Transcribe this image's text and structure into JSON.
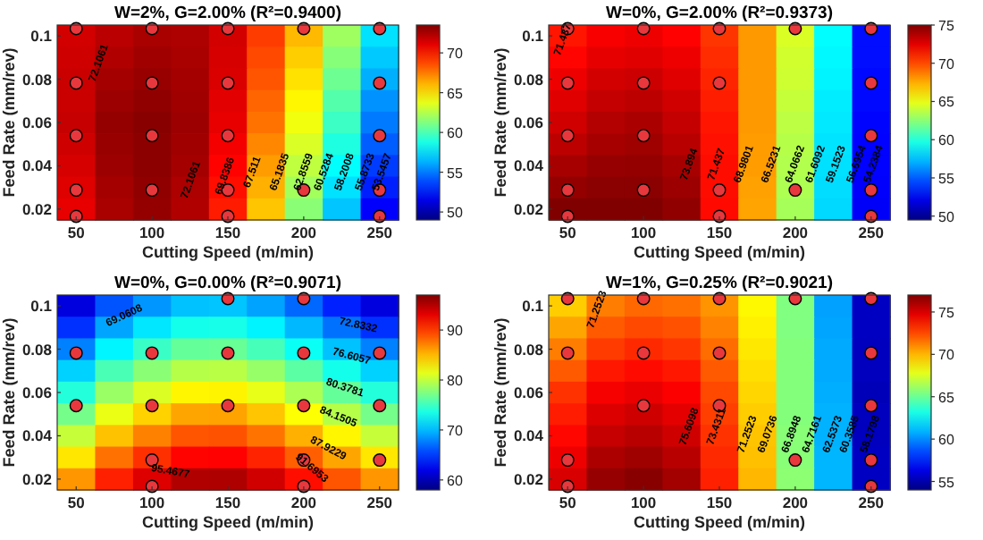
{
  "chart_data": [
    {
      "type": "heatmap",
      "title": "W=2%, G=2.00% (R²=0.9400)",
      "xlabel": "Cutting Speed (m/min)",
      "ylabel": "Feed Rate (mm/rev)",
      "categories": [
        "50",
        null,
        "100",
        null,
        "150",
        null,
        "200",
        null,
        "250"
      ],
      "y_categories": [
        "0.1",
        null,
        "0.08",
        null,
        "0.06",
        null,
        "0.04",
        null,
        "0.02"
      ],
      "clim": [
        49,
        73.5
      ],
      "cticks": [
        50,
        55,
        60,
        65,
        70
      ],
      "cells": [
        [
          71.5,
          72.1,
          72.5,
          72.4,
          71.5,
          69,
          66,
          62,
          57.5
        ],
        [
          71.6,
          72.3,
          72.7,
          72.5,
          71.4,
          68.7,
          65.5,
          61.4,
          56.9
        ],
        [
          71.7,
          72.6,
          72.9,
          72.6,
          71.3,
          68.4,
          65,
          60.8,
          56.3
        ],
        [
          71.7,
          72.8,
          73.1,
          72.7,
          71.1,
          68,
          64.5,
          60.2,
          55.6
        ],
        [
          71.8,
          73,
          73.3,
          72.8,
          71,
          67.7,
          64,
          59.6,
          55
        ],
        [
          71.6,
          72.9,
          73.2,
          72.7,
          70.7,
          67.2,
          63.4,
          58.9,
          54.3
        ],
        [
          71.4,
          72.8,
          73.2,
          72.6,
          70.4,
          66.7,
          62.8,
          58.2,
          53.5
        ],
        [
          71.2,
          72.6,
          73.1,
          72.4,
          70.1,
          66.2,
          62.1,
          57.5,
          52.8
        ],
        [
          71,
          72.5,
          73,
          72.3,
          69.8,
          65.7,
          61.5,
          56.8,
          52
        ]
      ],
      "annotations": [
        "72.1061",
        "72.1061",
        "69.8386",
        "67.511",
        "65.1835",
        "62.8559",
        "60.5284",
        "58.2008",
        "55.8733",
        "53.5457"
      ]
    },
    {
      "type": "heatmap",
      "title": "W=0%, G=2.00% (R²=0.9373)",
      "xlabel": "Cutting Speed (m/min)",
      "ylabel": "Feed Rate (mm/rev)",
      "categories": [
        "50",
        null,
        "100",
        null,
        "150",
        null,
        "200",
        null,
        "250"
      ],
      "y_categories": [
        "0.1",
        null,
        "0.08",
        null,
        "0.06",
        null,
        "0.04",
        null,
        "0.02"
      ],
      "clim": [
        49.5,
        75
      ],
      "cticks": [
        50,
        55,
        60,
        65,
        70,
        75
      ],
      "cells": [
        [
          71.3,
          72,
          72.2,
          71.8,
          70.5,
          68,
          64.5,
          59,
          53
        ],
        [
          71.7,
          72.4,
          72.6,
          72.2,
          70.7,
          68,
          64.3,
          58.9,
          53
        ],
        [
          72.2,
          72.9,
          73.1,
          72.6,
          70.9,
          68,
          64.2,
          58.8,
          52.9
        ],
        [
          72.6,
          73.3,
          73.5,
          73,
          71.1,
          68,
          64,
          58.6,
          52.9
        ],
        [
          73,
          73.7,
          73.9,
          73.3,
          71.3,
          68,
          63.8,
          58.5,
          52.8
        ],
        [
          73.5,
          74,
          74.2,
          73.6,
          71.4,
          67.9,
          63.6,
          58.4,
          52.7
        ],
        [
          74,
          74.4,
          74.5,
          74,
          71.5,
          67.9,
          63.5,
          58.3,
          52.7
        ],
        [
          74.5,
          74.7,
          74.7,
          74.3,
          71.5,
          67.8,
          63.4,
          58.2,
          52.6
        ],
        [
          75,
          75,
          75,
          74.6,
          71.6,
          67.7,
          63.2,
          58.1,
          52.5
        ]
      ],
      "annotations": [
        "71.437",
        "73.894",
        "71.437",
        "68.9801",
        "66.5231",
        "64.0662",
        "61.6092",
        "59.1523",
        "56.6954",
        "54.2384"
      ]
    },
    {
      "type": "heatmap",
      "title": "W=0%, G=0.00% (R²=0.9071)",
      "xlabel": "Cutting Speed (m/min)",
      "ylabel": "Feed Rate (mm/rev)",
      "categories": [
        "50",
        null,
        "100",
        null,
        "150",
        null,
        "200",
        null,
        "250"
      ],
      "y_categories": [
        "0.1",
        null,
        "0.08",
        null,
        "0.06",
        null,
        "0.04",
        null,
        "0.02"
      ],
      "clim": [
        58,
        97
      ],
      "cticks": [
        60,
        70,
        80,
        90
      ],
      "cells": [
        [
          61.6,
          66.1,
          68.6,
          70.3,
          70.4,
          69.1,
          66.8,
          64.1,
          61.6
        ],
        [
          64.7,
          69.2,
          71.7,
          73.4,
          73.5,
          72.2,
          69.9,
          67.2,
          64.7
        ],
        [
          67.8,
          72.3,
          74.8,
          76.5,
          76.6,
          75.3,
          73,
          70.3,
          67.8
        ],
        [
          70.9,
          75.4,
          77.9,
          79.6,
          79.7,
          78.4,
          76.1,
          73.4,
          70.9
        ],
        [
          74,
          78.5,
          81,
          82.7,
          82.8,
          81.5,
          79.2,
          76.5,
          74
        ],
        [
          77.1,
          81.6,
          84.1,
          85.8,
          85.9,
          84.6,
          82.3,
          79.6,
          77.1
        ],
        [
          80.2,
          84.7,
          87.2,
          88.9,
          89,
          87.7,
          85.4,
          82.7,
          80.2
        ],
        [
          83.3,
          87.8,
          90.3,
          92,
          92.1,
          90.8,
          88.5,
          85.8,
          83.3
        ],
        [
          86.4,
          90.9,
          93.4,
          95.1,
          95.2,
          93.9,
          91.6,
          88.9,
          86.4
        ]
      ],
      "annotations": [
        "69.0608",
        "72.8332",
        "76.6057",
        "80.3781",
        "84.1505",
        "87.9229",
        "91.6953",
        "95.4677"
      ]
    },
    {
      "type": "heatmap",
      "title": "W=1%, G=0.25% (R²=0.9021)",
      "xlabel": "Cutting Speed (m/min)",
      "ylabel": "Feed Rate (mm/rev)",
      "categories": [
        "50",
        null,
        "100",
        null,
        "150",
        null,
        "200",
        null,
        "250"
      ],
      "y_categories": [
        "0.1",
        null,
        "0.08",
        null,
        "0.06",
        null,
        "0.04",
        null,
        "0.02"
      ],
      "clim": [
        54,
        77
      ],
      "cticks": [
        55,
        60,
        65,
        70,
        75
      ],
      "cells": [
        [
          69.5,
          71.3,
          71.8,
          71.6,
          70.8,
          68.5,
          65.5,
          60.5,
          55.5
        ],
        [
          70.4,
          72.1,
          72.5,
          72.3,
          71.2,
          68.7,
          65.5,
          60.6,
          55.5
        ],
        [
          71.3,
          72.8,
          73.2,
          72.9,
          71.7,
          68.9,
          65.6,
          60.7,
          55.4
        ],
        [
          72.1,
          73.6,
          73.9,
          73.6,
          72.1,
          69.1,
          65.6,
          60.7,
          55.4
        ],
        [
          73,
          74.3,
          74.6,
          74.2,
          72.5,
          69.3,
          65.6,
          60.8,
          55.3
        ],
        [
          73.5,
          74.9,
          75.2,
          74.7,
          72.7,
          69.5,
          65.6,
          60.9,
          55.4
        ],
        [
          74,
          75.4,
          75.7,
          75.2,
          73,
          69.7,
          65.7,
          60.9,
          55.4
        ],
        [
          74.5,
          76,
          76.3,
          75.7,
          73.2,
          69.8,
          65.7,
          61,
          55.5
        ],
        [
          75,
          76.5,
          76.8,
          76.2,
          73.4,
          70,
          65.8,
          61,
          55.5
        ]
      ],
      "annotations": [
        "71.2523",
        "75.6098",
        "73.4311",
        "71.2523",
        "69.0736",
        "66.8948",
        "64.7161",
        "62.5373",
        "60.3585",
        "58.1798"
      ]
    }
  ]
}
